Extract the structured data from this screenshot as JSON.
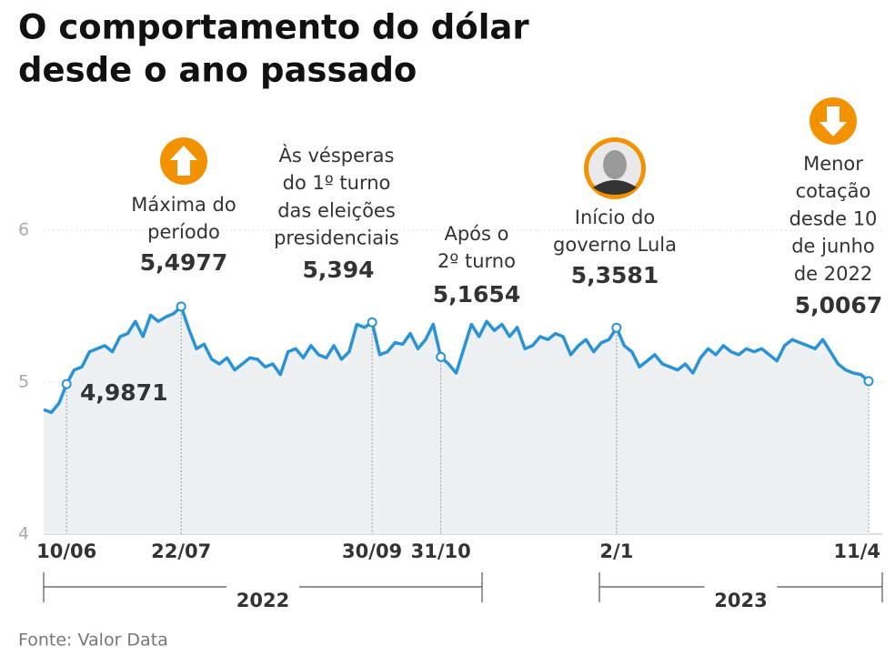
{
  "chart_data": {
    "type": "line",
    "title_lines": [
      "O comportamento do dólar",
      "desde o ano passado"
    ],
    "color": "#2a93d5",
    "ylim": [
      4,
      6
    ],
    "yticks": [
      4,
      5,
      6
    ],
    "grid": true,
    "categories": [
      null,
      null,
      null,
      "10/06",
      null,
      null,
      null,
      null,
      null,
      null,
      null,
      null,
      null,
      null,
      null,
      null,
      null,
      null,
      "22/07",
      null,
      null,
      null,
      null,
      null,
      null,
      null,
      null,
      null,
      null,
      null,
      null,
      null,
      null,
      null,
      null,
      null,
      null,
      null,
      null,
      null,
      null,
      null,
      null,
      "30/09",
      null,
      null,
      null,
      null,
      null,
      null,
      null,
      null,
      "31/10",
      null,
      null,
      null,
      null,
      null,
      null,
      null,
      null,
      null,
      null,
      null,
      null,
      null,
      null,
      null,
      null,
      null,
      null,
      null,
      null,
      null,
      null,
      "2/1",
      null,
      null,
      null,
      null,
      null,
      null,
      null,
      null,
      null,
      null,
      null,
      null,
      null,
      null,
      null,
      null,
      null,
      null,
      null,
      null,
      null,
      null,
      null,
      null,
      null,
      null,
      null,
      null,
      null,
      null,
      null,
      null,
      "11/4"
    ],
    "values": [
      4.82,
      4.8,
      4.86,
      4.9871,
      5.08,
      5.1,
      5.2,
      5.22,
      5.24,
      5.2,
      5.3,
      5.32,
      5.4,
      5.3,
      5.44,
      5.4,
      5.43,
      5.45,
      5.4977,
      5.35,
      5.22,
      5.25,
      5.15,
      5.12,
      5.16,
      5.08,
      5.12,
      5.16,
      5.15,
      5.1,
      5.12,
      5.05,
      5.2,
      5.22,
      5.16,
      5.24,
      5.18,
      5.16,
      5.24,
      5.15,
      5.2,
      5.38,
      5.36,
      5.394,
      5.18,
      5.2,
      5.26,
      5.25,
      5.32,
      5.22,
      5.28,
      5.38,
      5.1654,
      5.12,
      5.06,
      5.22,
      5.38,
      5.3,
      5.4,
      5.34,
      5.38,
      5.3,
      5.36,
      5.22,
      5.24,
      5.3,
      5.28,
      5.32,
      5.3,
      5.18,
      5.24,
      5.28,
      5.2,
      5.26,
      5.28,
      5.3581,
      5.24,
      5.2,
      5.1,
      5.14,
      5.18,
      5.12,
      5.1,
      5.08,
      5.12,
      5.06,
      5.16,
      5.22,
      5.18,
      5.24,
      5.2,
      5.18,
      5.22,
      5.2,
      5.22,
      5.18,
      5.14,
      5.24,
      5.28,
      5.26,
      5.24,
      5.22,
      5.28,
      5.2,
      5.12,
      5.08,
      5.06,
      5.05,
      5.0067
    ],
    "value_labels": [
      null,
      null,
      null,
      "4,9871",
      null,
      null,
      null,
      null,
      null,
      null,
      null,
      null,
      null,
      null,
      null,
      null,
      null,
      null,
      "5,4977",
      null,
      null,
      null,
      null,
      null,
      null,
      null,
      null,
      null,
      null,
      null,
      null,
      null,
      null,
      null,
      null,
      null,
      null,
      null,
      null,
      null,
      null,
      null,
      null,
      "5,394",
      null,
      null,
      null,
      null,
      null,
      null,
      null,
      null,
      "5,1654",
      null,
      null,
      null,
      null,
      null,
      null,
      null,
      null,
      null,
      null,
      null,
      null,
      null,
      null,
      null,
      null,
      null,
      null,
      null,
      null,
      null,
      null,
      "5,3581",
      null,
      null,
      null,
      null,
      null,
      null,
      null,
      null,
      null,
      null,
      null,
      null,
      null,
      null,
      null,
      null,
      null,
      null,
      null,
      null,
      null,
      null,
      null,
      null,
      null,
      null,
      null,
      null,
      null,
      null,
      null,
      null,
      "5,0067"
    ],
    "annotations": [
      {
        "x": "22/07",
        "lines": [
          "Máxima do",
          "período"
        ]
      },
      {
        "x": "30/09",
        "lines": [
          "Às vésperas",
          "do 1º turno",
          "das eleições",
          "presidenciais"
        ]
      },
      {
        "x": "31/10",
        "lines": [
          "Após o",
          "2º turno"
        ]
      },
      {
        "x": "2/1",
        "lines": [
          "Início do",
          "governo Lula"
        ]
      },
      {
        "x": "11/4",
        "lines": [
          "Menor",
          "cotação",
          "desde 10",
          "de junho",
          "de 2022"
        ]
      }
    ],
    "years": [
      "2022",
      "2023"
    ],
    "source": "Fonte: Valor Data"
  }
}
